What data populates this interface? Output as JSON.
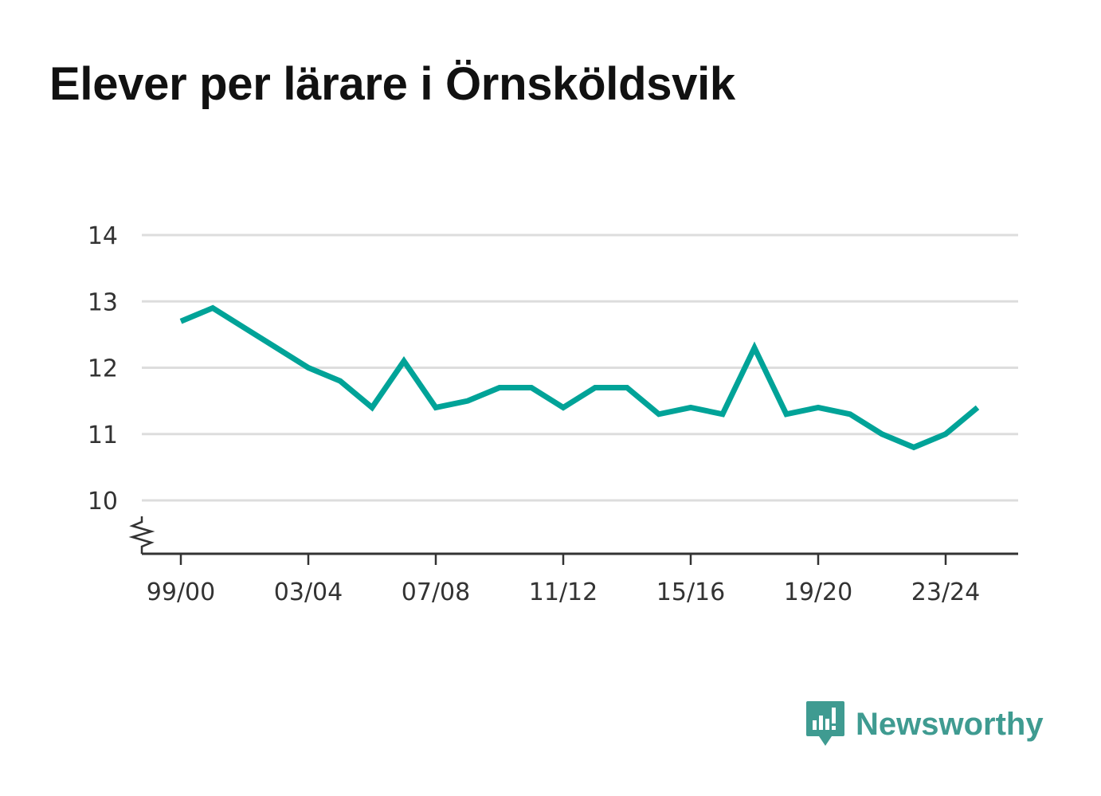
{
  "title": "Elever per lärare i Örnsköldsvik",
  "brand": {
    "name": "Newsworthy",
    "icon": "newsworthy-logo-icon",
    "color": "#3f9b91"
  },
  "chart_data": {
    "type": "line",
    "title": "Elever per lärare i Örnsköldsvik",
    "xlabel": "",
    "ylabel": "",
    "x": [
      "99/00",
      "00/01",
      "01/02",
      "02/03",
      "03/04",
      "04/05",
      "05/06",
      "06/07",
      "07/08",
      "08/09",
      "09/10",
      "10/11",
      "11/12",
      "12/13",
      "13/14",
      "14/15",
      "15/16",
      "16/17",
      "17/18",
      "18/19",
      "19/20",
      "20/21",
      "21/22",
      "22/23",
      "23/24",
      "24/25"
    ],
    "x_tick_labels": [
      "99/00",
      "03/04",
      "07/08",
      "11/12",
      "15/16",
      "19/20",
      "23/24"
    ],
    "y_ticks": [
      10,
      11,
      12,
      13,
      14
    ],
    "ylim": [
      9.2,
      14
    ],
    "y_axis_break": true,
    "grid": true,
    "series": [
      {
        "color": "#00a398",
        "values": [
          12.7,
          12.9,
          12.6,
          12.3,
          12.0,
          11.8,
          11.4,
          12.1,
          11.4,
          11.5,
          11.7,
          11.7,
          11.4,
          11.7,
          11.7,
          11.3,
          11.4,
          11.3,
          12.3,
          11.3,
          11.4,
          11.3,
          11.0,
          10.8,
          11.0,
          11.4
        ]
      }
    ]
  }
}
